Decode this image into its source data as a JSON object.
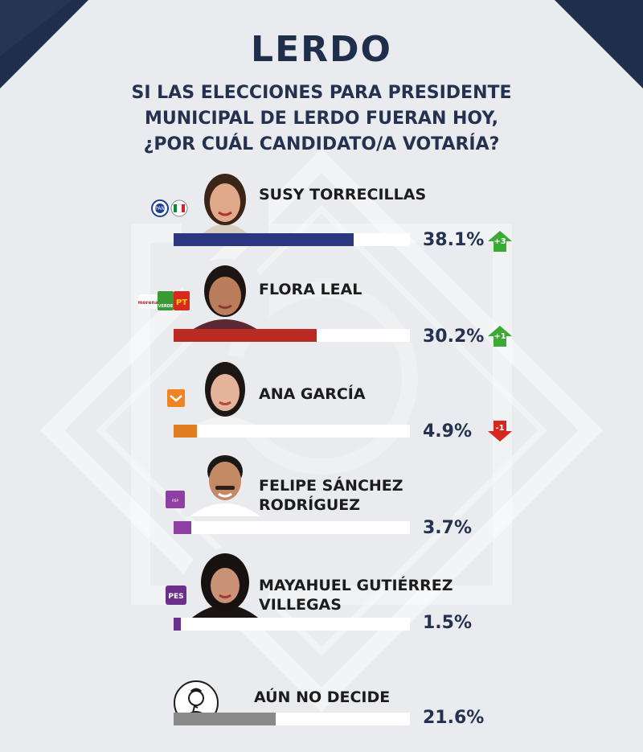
{
  "header": {
    "title": "LERDO",
    "question_lines": [
      "SI LAS ELECCIONES PARA PRESIDENTE",
      "MUNICIPAL DE LERDO FUERAN HOY,",
      "¿POR CUÁL CANDIDATO/A VOTARÍA?"
    ]
  },
  "candidates": [
    {
      "name_lines": [
        "SUSY TORRECILLAS"
      ],
      "pct": "38.1%",
      "change": "+3",
      "trend": "up",
      "bar_color": "#2a3680",
      "party_logos": [
        "PAN",
        "PRI"
      ]
    },
    {
      "name_lines": [
        "FLORA LEAL"
      ],
      "pct": "30.2%",
      "change": "+1",
      "trend": "up",
      "bar_color": "#b82a22",
      "party_logos": [
        "morena",
        "VERDE",
        "PT"
      ]
    },
    {
      "name_lines": [
        "ANA GARCÍA"
      ],
      "pct": "4.9%",
      "change": "-1",
      "trend": "down",
      "bar_color": "#e07d20",
      "party_logos": [
        "MC"
      ]
    },
    {
      "name_lines": [
        "FELIPE SÁNCHEZ",
        "RODRÍGUEZ"
      ],
      "pct": "3.7%",
      "change": "",
      "trend": "none",
      "bar_color": "#8e3fa3",
      "party_logos": [
        "RSP"
      ]
    },
    {
      "name_lines": [
        "MAYAHUEL GUTIÉRREZ",
        "VILLEGAS"
      ],
      "pct": "1.5%",
      "change": "",
      "trend": "none",
      "bar_color": "#6b2f8c",
      "party_logos": [
        "PES"
      ]
    },
    {
      "name_lines": [
        "AÚN NO DECIDE"
      ],
      "pct": "21.6%",
      "change": "",
      "trend": "none",
      "bar_color": "#8a8a8a",
      "party_logos": []
    }
  ],
  "chart_data": {
    "type": "bar",
    "orientation": "horizontal",
    "title": "LERDO",
    "subtitle": "SI LAS ELECCIONES PARA PRESIDENTE MUNICIPAL DE LERDO FUERAN HOY, ¿POR CUÁL CANDIDATO/A VOTARÍA?",
    "categories": [
      "SUSY TORRECILLAS",
      "FLORA LEAL",
      "ANA GARCÍA",
      "FELIPE SÁNCHEZ RODRÍGUEZ",
      "MAYAHUEL GUTIÉRREZ VILLEGAS",
      "AÚN NO DECIDE"
    ],
    "values": [
      38.1,
      30.2,
      4.9,
      3.7,
      1.5,
      21.6
    ],
    "changes": [
      "+3",
      "+1",
      "-1",
      null,
      null,
      null
    ],
    "xlim": [
      0,
      50
    ],
    "grid": false,
    "legend": "none"
  },
  "colors": {
    "title": "#1f2e4b",
    "background": "#e9ebee",
    "up_arrow": "#3aaa35",
    "down_arrow": "#d7261e"
  }
}
